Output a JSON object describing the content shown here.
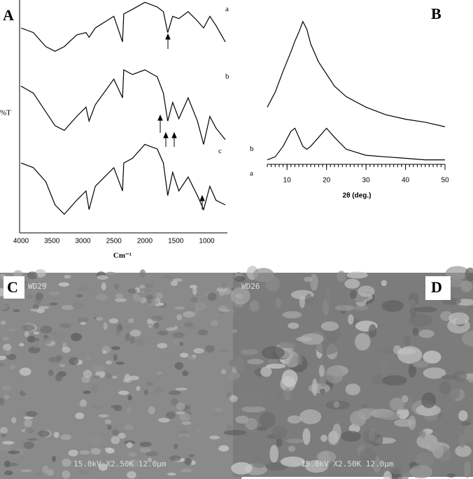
{
  "chart_data": [
    {
      "type": "line",
      "panel": "A",
      "ylabel": "%T",
      "xlabel": "Cm⁻¹",
      "x": [
        4000,
        3800,
        3600,
        3450,
        3300,
        3100,
        2950,
        2900,
        2800,
        2500,
        2360,
        2340,
        2200,
        2000,
        1800,
        1700,
        1630,
        1550,
        1450,
        1300,
        1150,
        1050,
        950,
        850,
        700
      ],
      "xlim": [
        4000,
        700
      ],
      "xticks": [
        4000,
        3500,
        3000,
        2500,
        2000,
        1500,
        1000
      ],
      "ylim": [
        0,
        100
      ],
      "series": [
        {
          "name": "a",
          "color": "#000000",
          "values": [
            88,
            86,
            80,
            78,
            80,
            85,
            86,
            84,
            88,
            93,
            82,
            94,
            96,
            99,
            97,
            95,
            86,
            93,
            92,
            95,
            91,
            88,
            93,
            89,
            82
          ]
        },
        {
          "name": "b",
          "color": "#000000",
          "values": [
            63,
            60,
            52,
            46,
            44,
            50,
            54,
            48,
            55,
            66,
            58,
            70,
            68,
            70,
            67,
            60,
            48,
            56,
            49,
            58,
            48,
            38,
            50,
            45,
            40
          ]
        },
        {
          "name": "c",
          "color": "#000000",
          "values": [
            30,
            28,
            22,
            12,
            8,
            14,
            18,
            10,
            20,
            28,
            18,
            30,
            32,
            38,
            36,
            30,
            16,
            26,
            18,
            24,
            16,
            10,
            20,
            14,
            12
          ]
        }
      ]
    },
    {
      "type": "line",
      "panel": "B",
      "xlabel": "2θ (deg.)",
      "x": [
        5,
        7,
        9,
        11,
        12,
        13,
        14,
        15,
        16,
        18,
        20,
        22,
        25,
        30,
        35,
        40,
        45,
        50
      ],
      "xlim": [
        5,
        50
      ],
      "xticks": [
        10,
        20,
        30,
        40,
        50
      ],
      "ylim": [
        0,
        100
      ],
      "series": [
        {
          "name": "b",
          "color": "#000000",
          "values": [
            38,
            48,
            62,
            75,
            82,
            88,
            95,
            90,
            80,
            68,
            60,
            52,
            45,
            38,
            33,
            30,
            28,
            25
          ]
        },
        {
          "name": "a",
          "color": "#000000",
          "values": [
            3,
            5,
            12,
            22,
            24,
            18,
            12,
            10,
            12,
            18,
            24,
            18,
            10,
            6,
            5,
            4,
            3,
            3
          ]
        }
      ]
    }
  ],
  "images": [
    {
      "panel": "C",
      "tag": "WD29",
      "caption": "15.0kV X2.50K 12.0µm"
    },
    {
      "panel": "D",
      "tag": "WD26",
      "caption": "15.0kV X2.50K 12.0µm"
    }
  ]
}
